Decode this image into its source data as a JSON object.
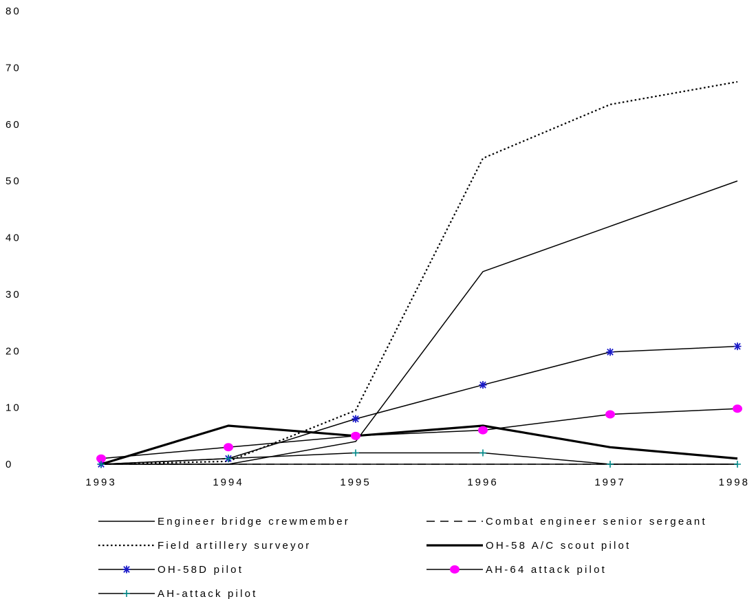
{
  "chart_data": {
    "type": "line",
    "title": "",
    "xlabel": "",
    "ylabel": "",
    "categories": [
      "1993",
      "1994",
      "1995",
      "1996",
      "1997",
      "1998"
    ],
    "ylim": [
      0,
      80
    ],
    "yticks": [
      "0",
      "10",
      "20",
      "30",
      "40",
      "50",
      "60",
      "70",
      "80"
    ],
    "grid": false,
    "legend_position": "bottom",
    "series": [
      {
        "name": "Engineer bridge crewmember",
        "values": [
          0,
          0,
          4,
          34,
          42,
          50
        ],
        "color": "#000000",
        "style": "solid",
        "marker": "none"
      },
      {
        "name": "Combat engineer senior sergeant",
        "values": [
          0,
          0,
          0,
          0,
          0,
          0
        ],
        "color": "#000000",
        "style": "dashed",
        "marker": "none"
      },
      {
        "name": "Field artillery surveyor",
        "values": [
          0,
          0.5,
          9.5,
          54,
          63.5,
          67.5
        ],
        "color": "#000000",
        "style": "dotted",
        "marker": "none"
      },
      {
        "name": "OH-58 A/C scout pilot",
        "values": [
          0,
          6.8,
          5,
          6.8,
          3,
          1
        ],
        "color": "#000000",
        "style": "thick",
        "marker": "none"
      },
      {
        "name": "OH-58D pilot",
        "values": [
          0,
          1,
          8,
          14,
          19.8,
          20.8
        ],
        "color": "#1a1ac8",
        "style": "solid",
        "marker": "asterisk"
      },
      {
        "name": "AH-64 attack  pilot",
        "values": [
          1,
          3,
          5,
          6,
          8.8,
          9.8
        ],
        "color": "#ff00ff",
        "style": "solid",
        "marker": "circle"
      },
      {
        "name": "AH-attack pilot",
        "values": [
          0,
          1,
          2,
          2,
          0,
          0
        ],
        "color": "#008b8b",
        "style": "solid",
        "marker": "plus"
      }
    ]
  }
}
